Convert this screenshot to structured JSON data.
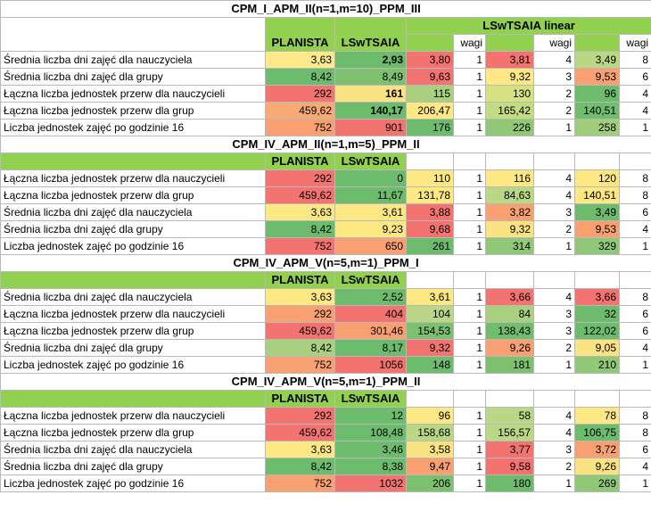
{
  "wagi_label": "wagi",
  "sections": [
    {
      "title": "CPM_I_APM_II(n=1,m=10)_PPM_III",
      "super_header": "LSwTSAIA linear",
      "col_planista": "PLANISTA",
      "col_lswtsaia": "LSwTSAIA",
      "rows": [
        {
          "label": "Średnia liczba dni zajęć dla nauczyciela",
          "p": "3,63",
          "l": "2,93",
          "lbold": true,
          "v1": "3,80",
          "w1": "1",
          "v2": "3,81",
          "w2": "4",
          "v3": "3,49",
          "w3": "8",
          "cp": "#ffe98a",
          "cl": "#6dbb6d",
          "c1": "#f37370",
          "cw1": "#ffffff",
          "c2": "#f37370",
          "cw2": "#ffffff",
          "c3": "#b9d784",
          "cw3": "#ffffff"
        },
        {
          "label": "Średnia liczba dni zajęć dla grupy",
          "p": "8,42",
          "l": "8,49",
          "lbold": false,
          "v1": "9,63",
          "w1": "1",
          "v2": "9,32",
          "w2": "3",
          "v3": "9,53",
          "w3": "6",
          "cp": "#6dbb6d",
          "cl": "#7dc06f",
          "c1": "#f37370",
          "cw1": "#ffffff",
          "c2": "#fde883",
          "cw2": "#ffffff",
          "c3": "#f8a072",
          "cw3": "#ffffff"
        },
        {
          "label": "Łączna liczba jednostek przerw dla nauczycieli",
          "p": "292",
          "l": "161",
          "lbold": true,
          "v1": "115",
          "w1": "1",
          "v2": "130",
          "w2": "2",
          "v3": "96",
          "w3": "4",
          "cp": "#f37370",
          "cl": "#fbe282",
          "c1": "#a8d07e",
          "cw1": "#ffffff",
          "c2": "#d6e282",
          "cw2": "#ffffff",
          "c3": "#6dbb6d",
          "cw3": "#ffffff"
        },
        {
          "label": "Łączna liczba jednostek przerw dla grup",
          "p": "459,62",
          "l": "140,17",
          "lbold": true,
          "v1": "206,47",
          "w1": "1",
          "v2": "165,42",
          "w2": "2",
          "v3": "140,51",
          "w3": "4",
          "cp": "#f9a974",
          "cl": "#6dbb6d",
          "c1": "#fde883",
          "cw1": "#ffffff",
          "c2": "#c4dc80",
          "cw2": "#ffffff",
          "c3": "#70bd6e",
          "cw3": "#ffffff"
        },
        {
          "label": "Liczba jednostek zajęć po godzinie 16",
          "p": "752",
          "l": "901",
          "lbold": false,
          "v1": "176",
          "w1": "1",
          "v2": "226",
          "w2": "1",
          "v3": "258",
          "w3": "1",
          "cp": "#f8a072",
          "cl": "#f37370",
          "c1": "#6dbb6d",
          "cw1": "#ffffff",
          "c2": "#90c877",
          "cw2": "#ffffff",
          "c3": "#a0cd7b",
          "cw3": "#ffffff"
        }
      ]
    },
    {
      "title": "CPM_IV_APM_II(n=1,m=5)_PPM_II",
      "col_planista": "PLANISTA",
      "col_lswtsaia": "LSwTSAIA",
      "rows": [
        {
          "label": "Łączna liczba jednostek przerw dla nauczycieli",
          "p": "292",
          "l": "0",
          "lbold": false,
          "v1": "110",
          "w1": "1",
          "v2": "116",
          "w2": "4",
          "v3": "120",
          "w3": "8",
          "cp": "#f37370",
          "cl": "#6dbb6d",
          "c1": "#fde883",
          "cw1": "#ffffff",
          "c2": "#fde883",
          "cw2": "#ffffff",
          "c3": "#fde883",
          "cw3": "#ffffff"
        },
        {
          "label": "Łączna liczba jednostek przerw dla grup",
          "p": "459,62",
          "l": "11,67",
          "lbold": false,
          "v1": "131,78",
          "w1": "1",
          "v2": "84,63",
          "w2": "4",
          "v3": "140,51",
          "w3": "8",
          "cp": "#f37370",
          "cl": "#6dbb6d",
          "c1": "#fde883",
          "cw1": "#ffffff",
          "c2": "#b9d784",
          "cw2": "#ffffff",
          "c3": "#fde883",
          "cw3": "#ffffff"
        },
        {
          "label": "Średnia liczba dni zajęć dla nauczyciela",
          "p": "3,63",
          "l": "3,61",
          "lbold": false,
          "v1": "3,88",
          "w1": "1",
          "v2": "3,82",
          "w2": "3",
          "v3": "3,49",
          "w3": "6",
          "cp": "#fde883",
          "cl": "#fde883",
          "c1": "#f37370",
          "cw1": "#ffffff",
          "c2": "#f8a072",
          "cw2": "#ffffff",
          "c3": "#6dbb6d",
          "cw3": "#ffffff"
        },
        {
          "label": "Średnia liczba dni zajęć dla grupy",
          "p": "8,42",
          "l": "9,23",
          "lbold": false,
          "v1": "9,68",
          "w1": "1",
          "v2": "9,32",
          "w2": "2",
          "v3": "9,53",
          "w3": "4",
          "cp": "#6dbb6d",
          "cl": "#fde883",
          "c1": "#f37370",
          "cw1": "#ffffff",
          "c2": "#fbe282",
          "cw2": "#ffffff",
          "c3": "#f8a072",
          "cw3": "#ffffff"
        },
        {
          "label": "Liczba jednostek zajęć po godzinie 16",
          "p": "752",
          "l": "650",
          "lbold": false,
          "v1": "261",
          "w1": "1",
          "v2": "314",
          "w2": "1",
          "v3": "329",
          "w3": "1",
          "cp": "#f37370",
          "cl": "#f8a072",
          "c1": "#6dbb6d",
          "cw1": "#ffffff",
          "c2": "#90c877",
          "cw2": "#ffffff",
          "c3": "#90c877",
          "cw3": "#ffffff"
        }
      ]
    },
    {
      "title": "CPM_IV_APM_V(n=5,m=1)_PPM_I",
      "col_planista": "PLANISTA",
      "col_lswtsaia": "LSwTSAIA",
      "rows": [
        {
          "label": "Średnia liczba dni zajęć dla nauczyciela",
          "p": "3,63",
          "l": "2,52",
          "lbold": false,
          "v1": "3,61",
          "w1": "1",
          "v2": "3,66",
          "w2": "4",
          "v3": "3,66",
          "w3": "8",
          "cp": "#fde883",
          "cl": "#6dbb6d",
          "c1": "#fde883",
          "cw1": "#ffffff",
          "c2": "#f37370",
          "cw2": "#ffffff",
          "c3": "#f37370",
          "cw3": "#ffffff"
        },
        {
          "label": "Łączna liczba jednostek przerw dla nauczycieli",
          "p": "292",
          "l": "404",
          "lbold": false,
          "v1": "104",
          "w1": "1",
          "v2": "84",
          "w2": "3",
          "v3": "32",
          "w3": "6",
          "cp": "#f8a072",
          "cl": "#f37370",
          "c1": "#b9d784",
          "cw1": "#ffffff",
          "c2": "#a8d07e",
          "cw2": "#ffffff",
          "c3": "#6dbb6d",
          "cw3": "#ffffff"
        },
        {
          "label": "Łączna liczba jednostek przerw dla grup",
          "p": "459,62",
          "l": "301,46",
          "lbold": false,
          "v1": "154,53",
          "w1": "1",
          "v2": "138,43",
          "w2": "3",
          "v3": "122,02",
          "w3": "6",
          "cp": "#f37370",
          "cl": "#f8a072",
          "c1": "#7dc06f",
          "cw1": "#ffffff",
          "c2": "#70bd6e",
          "cw2": "#ffffff",
          "c3": "#6dbb6d",
          "cw3": "#ffffff"
        },
        {
          "label": "Średnia liczba dni zajęć dla grupy",
          "p": "8,42",
          "l": "8,17",
          "lbold": false,
          "v1": "9,32",
          "w1": "1",
          "v2": "9,26",
          "w2": "2",
          "v3": "9,05",
          "w3": "4",
          "cp": "#a8d07e",
          "cl": "#6dbb6d",
          "c1": "#f37370",
          "cw1": "#ffffff",
          "c2": "#f8a072",
          "cw2": "#ffffff",
          "c3": "#fbe282",
          "cw3": "#ffffff"
        },
        {
          "label": "Liczba jednostek zajęć po godzinie 16",
          "p": "752",
          "l": "1056",
          "lbold": false,
          "v1": "148",
          "w1": "1",
          "v2": "181",
          "w2": "1",
          "v3": "210",
          "w3": "1",
          "cp": "#f8a072",
          "cl": "#f37370",
          "c1": "#6dbb6d",
          "cw1": "#ffffff",
          "c2": "#7dc06f",
          "cw2": "#ffffff",
          "c3": "#90c877",
          "cw3": "#ffffff"
        }
      ]
    },
    {
      "title": "CPM_IV_APM_V(n=5,m=1)_PPM_II",
      "col_planista": "PLANISTA",
      "col_lswtsaia": "LSwTSAIA",
      "rows": [
        {
          "label": "Łączna liczba jednostek przerw dla nauczycieli",
          "p": "292",
          "l": "12",
          "lbold": false,
          "v1": "96",
          "w1": "1",
          "v2": "58",
          "w2": "4",
          "v3": "78",
          "w3": "8",
          "cp": "#f37370",
          "cl": "#6dbb6d",
          "c1": "#fde883",
          "cw1": "#ffffff",
          "c2": "#b9d784",
          "cw2": "#ffffff",
          "c3": "#fde883",
          "cw3": "#ffffff"
        },
        {
          "label": "Łączna liczba jednostek przerw dla grup",
          "p": "459,62",
          "l": "108,48",
          "lbold": false,
          "v1": "158,68",
          "w1": "1",
          "v2": "156,57",
          "w2": "4",
          "v3": "106,75",
          "w3": "8",
          "cp": "#f37370",
          "cl": "#6dbb6d",
          "c1": "#b9d784",
          "cw1": "#ffffff",
          "c2": "#b9d784",
          "cw2": "#ffffff",
          "c3": "#6dbb6d",
          "cw3": "#ffffff"
        },
        {
          "label": "Średnia liczba dni zajęć dla nauczyciela",
          "p": "3,63",
          "l": "3,46",
          "lbold": false,
          "v1": "3,58",
          "w1": "1",
          "v2": "3,77",
          "w2": "3",
          "v3": "3,72",
          "w3": "6",
          "cp": "#fde883",
          "cl": "#6dbb6d",
          "c1": "#fbe282",
          "cw1": "#ffffff",
          "c2": "#f37370",
          "cw2": "#ffffff",
          "c3": "#f8a072",
          "cw3": "#ffffff"
        },
        {
          "label": "Średnia liczba dni zajęć dla grupy",
          "p": "8,42",
          "l": "8,38",
          "lbold": false,
          "v1": "9,47",
          "w1": "1",
          "v2": "9,58",
          "w2": "2",
          "v3": "9,26",
          "w3": "4",
          "cp": "#6dbb6d",
          "cl": "#6dbb6d",
          "c1": "#f8a072",
          "cw1": "#ffffff",
          "c2": "#f37370",
          "cw2": "#ffffff",
          "c3": "#fbe282",
          "cw3": "#ffffff"
        },
        {
          "label": "Liczba jednostek zajęć po godzinie 16",
          "p": "752",
          "l": "1032",
          "lbold": false,
          "v1": "206",
          "w1": "1",
          "v2": "180",
          "w2": "1",
          "v3": "269",
          "w3": "1",
          "cp": "#f8a072",
          "cl": "#f37370",
          "c1": "#7dc06f",
          "cw1": "#ffffff",
          "c2": "#6dbb6d",
          "cw2": "#ffffff",
          "c3": "#90c877",
          "cw3": "#ffffff"
        }
      ]
    }
  ]
}
